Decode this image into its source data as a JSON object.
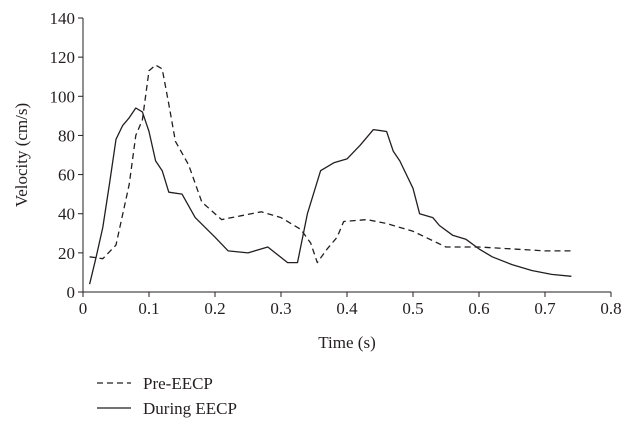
{
  "chart_data": {
    "type": "line",
    "title": "",
    "xlabel": "Time (s)",
    "ylabel": "Velocity (cm/s)",
    "xlim": [
      0,
      0.8
    ],
    "ylim": [
      0,
      140
    ],
    "x_ticks": [
      "0",
      "0.1",
      "0.2",
      "0.3",
      "0.4",
      "0.5",
      "0.6",
      "0.7",
      "0.8"
    ],
    "y_ticks": [
      "0",
      "20",
      "40",
      "60",
      "80",
      "100",
      "120",
      "140"
    ],
    "grid": false,
    "legend_position": "bottom-left",
    "series": [
      {
        "name": "Pre-EECP",
        "style": "dashed",
        "color": "#231f20",
        "points": [
          [
            0.01,
            18
          ],
          [
            0.03,
            17
          ],
          [
            0.05,
            24
          ],
          [
            0.07,
            55
          ],
          [
            0.08,
            80
          ],
          [
            0.09,
            88
          ],
          [
            0.1,
            113
          ],
          [
            0.11,
            116
          ],
          [
            0.12,
            114
          ],
          [
            0.13,
            96
          ],
          [
            0.14,
            77
          ],
          [
            0.16,
            65
          ],
          [
            0.18,
            46
          ],
          [
            0.21,
            37
          ],
          [
            0.24,
            39
          ],
          [
            0.27,
            41
          ],
          [
            0.3,
            38
          ],
          [
            0.33,
            32
          ],
          [
            0.345,
            25
          ],
          [
            0.355,
            15
          ],
          [
            0.37,
            22
          ],
          [
            0.385,
            28
          ],
          [
            0.395,
            36
          ],
          [
            0.43,
            37
          ],
          [
            0.46,
            35
          ],
          [
            0.5,
            31
          ],
          [
            0.55,
            23
          ],
          [
            0.6,
            23
          ],
          [
            0.65,
            22
          ],
          [
            0.7,
            21
          ],
          [
            0.74,
            21
          ]
        ]
      },
      {
        "name": "During EECP",
        "style": "solid",
        "color": "#231f20",
        "points": [
          [
            0.01,
            4
          ],
          [
            0.02,
            18
          ],
          [
            0.03,
            33
          ],
          [
            0.04,
            55
          ],
          [
            0.05,
            78
          ],
          [
            0.06,
            85
          ],
          [
            0.07,
            89
          ],
          [
            0.08,
            94
          ],
          [
            0.09,
            92
          ],
          [
            0.1,
            82
          ],
          [
            0.11,
            67
          ],
          [
            0.12,
            62
          ],
          [
            0.13,
            51
          ],
          [
            0.15,
            50
          ],
          [
            0.17,
            38
          ],
          [
            0.2,
            28
          ],
          [
            0.22,
            21
          ],
          [
            0.25,
            20
          ],
          [
            0.28,
            23
          ],
          [
            0.31,
            15
          ],
          [
            0.325,
            15
          ],
          [
            0.34,
            40
          ],
          [
            0.35,
            51
          ],
          [
            0.36,
            62
          ],
          [
            0.38,
            66
          ],
          [
            0.4,
            68
          ],
          [
            0.42,
            75
          ],
          [
            0.44,
            83
          ],
          [
            0.46,
            82
          ],
          [
            0.47,
            72
          ],
          [
            0.48,
            67
          ],
          [
            0.5,
            53
          ],
          [
            0.51,
            40
          ],
          [
            0.53,
            38
          ],
          [
            0.54,
            34
          ],
          [
            0.56,
            29
          ],
          [
            0.58,
            27
          ],
          [
            0.6,
            22
          ],
          [
            0.62,
            18
          ],
          [
            0.65,
            14
          ],
          [
            0.68,
            11
          ],
          [
            0.71,
            9
          ],
          [
            0.74,
            8
          ]
        ]
      }
    ]
  }
}
